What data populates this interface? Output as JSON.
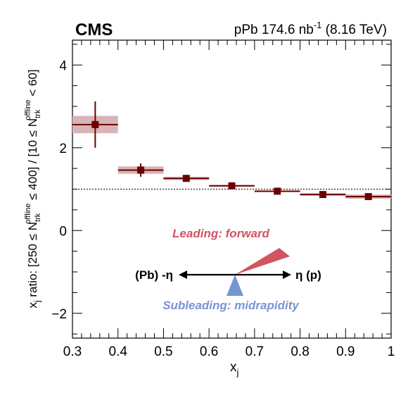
{
  "header": {
    "experiment": "CMS",
    "lumi_prefix": "pPb 174.6 nb",
    "lumi_sup": "-1",
    "lumi_suffix": " (8.16 TeV)"
  },
  "chart_data": {
    "type": "scatter",
    "xlabel_main": "x",
    "xlabel_sub": "j",
    "ylabel": {
      "p1": "x",
      "p1_sub": "j",
      "p2": " ratio: [250 ≤ N",
      "p2_sup": "offline",
      "p2_sub": "trk",
      "p3": " ≤ 400] / [10 ≤ N",
      "p3_sup": "offline",
      "p3_sub": "trk",
      "p4": " < 60]"
    },
    "xlim": [
      0.3,
      1.0
    ],
    "ylim": [
      -2.6,
      4.6
    ],
    "x_ticks": [
      "0.3",
      "0.4",
      "0.5",
      "0.6",
      "0.7",
      "0.8",
      "0.9",
      "1"
    ],
    "y_ticks": [
      "−2",
      "0",
      "2",
      "4"
    ],
    "reference_line": 1.0,
    "series": [
      {
        "points": [
          {
            "xlo": 0.3,
            "xhi": 0.4,
            "x": 0.35,
            "y": 2.56,
            "stat": 0.56,
            "syst": 0.21
          },
          {
            "xlo": 0.4,
            "xhi": 0.5,
            "x": 0.45,
            "y": 1.46,
            "stat": 0.16,
            "syst": 0.09
          },
          {
            "xlo": 0.5,
            "xhi": 0.6,
            "x": 0.55,
            "y": 1.26,
            "stat": 0.05,
            "syst": 0.04
          },
          {
            "xlo": 0.6,
            "xhi": 0.7,
            "x": 0.65,
            "y": 1.08,
            "stat": 0.04,
            "syst": 0.02
          },
          {
            "xlo": 0.7,
            "xhi": 0.8,
            "x": 0.75,
            "y": 0.95,
            "stat": 0.03,
            "syst": 0.02
          },
          {
            "xlo": 0.8,
            "xhi": 0.9,
            "x": 0.85,
            "y": 0.87,
            "stat": 0.03,
            "syst": 0.03
          },
          {
            "xlo": 0.9,
            "xhi": 1.0,
            "x": 0.95,
            "y": 0.82,
            "stat": 0.04,
            "syst": 0.05
          }
        ]
      }
    ],
    "colors": {
      "marker": "#6b0000",
      "syst_band": "#d8b4b6",
      "leading": "#d25460",
      "subleading": "#7595d2"
    },
    "inset": {
      "leading_label": "Leading: forward",
      "subleading_label": "Subleading: midrapidity",
      "left_label": "(Pb) -η",
      "right_label": "η (p)"
    }
  }
}
